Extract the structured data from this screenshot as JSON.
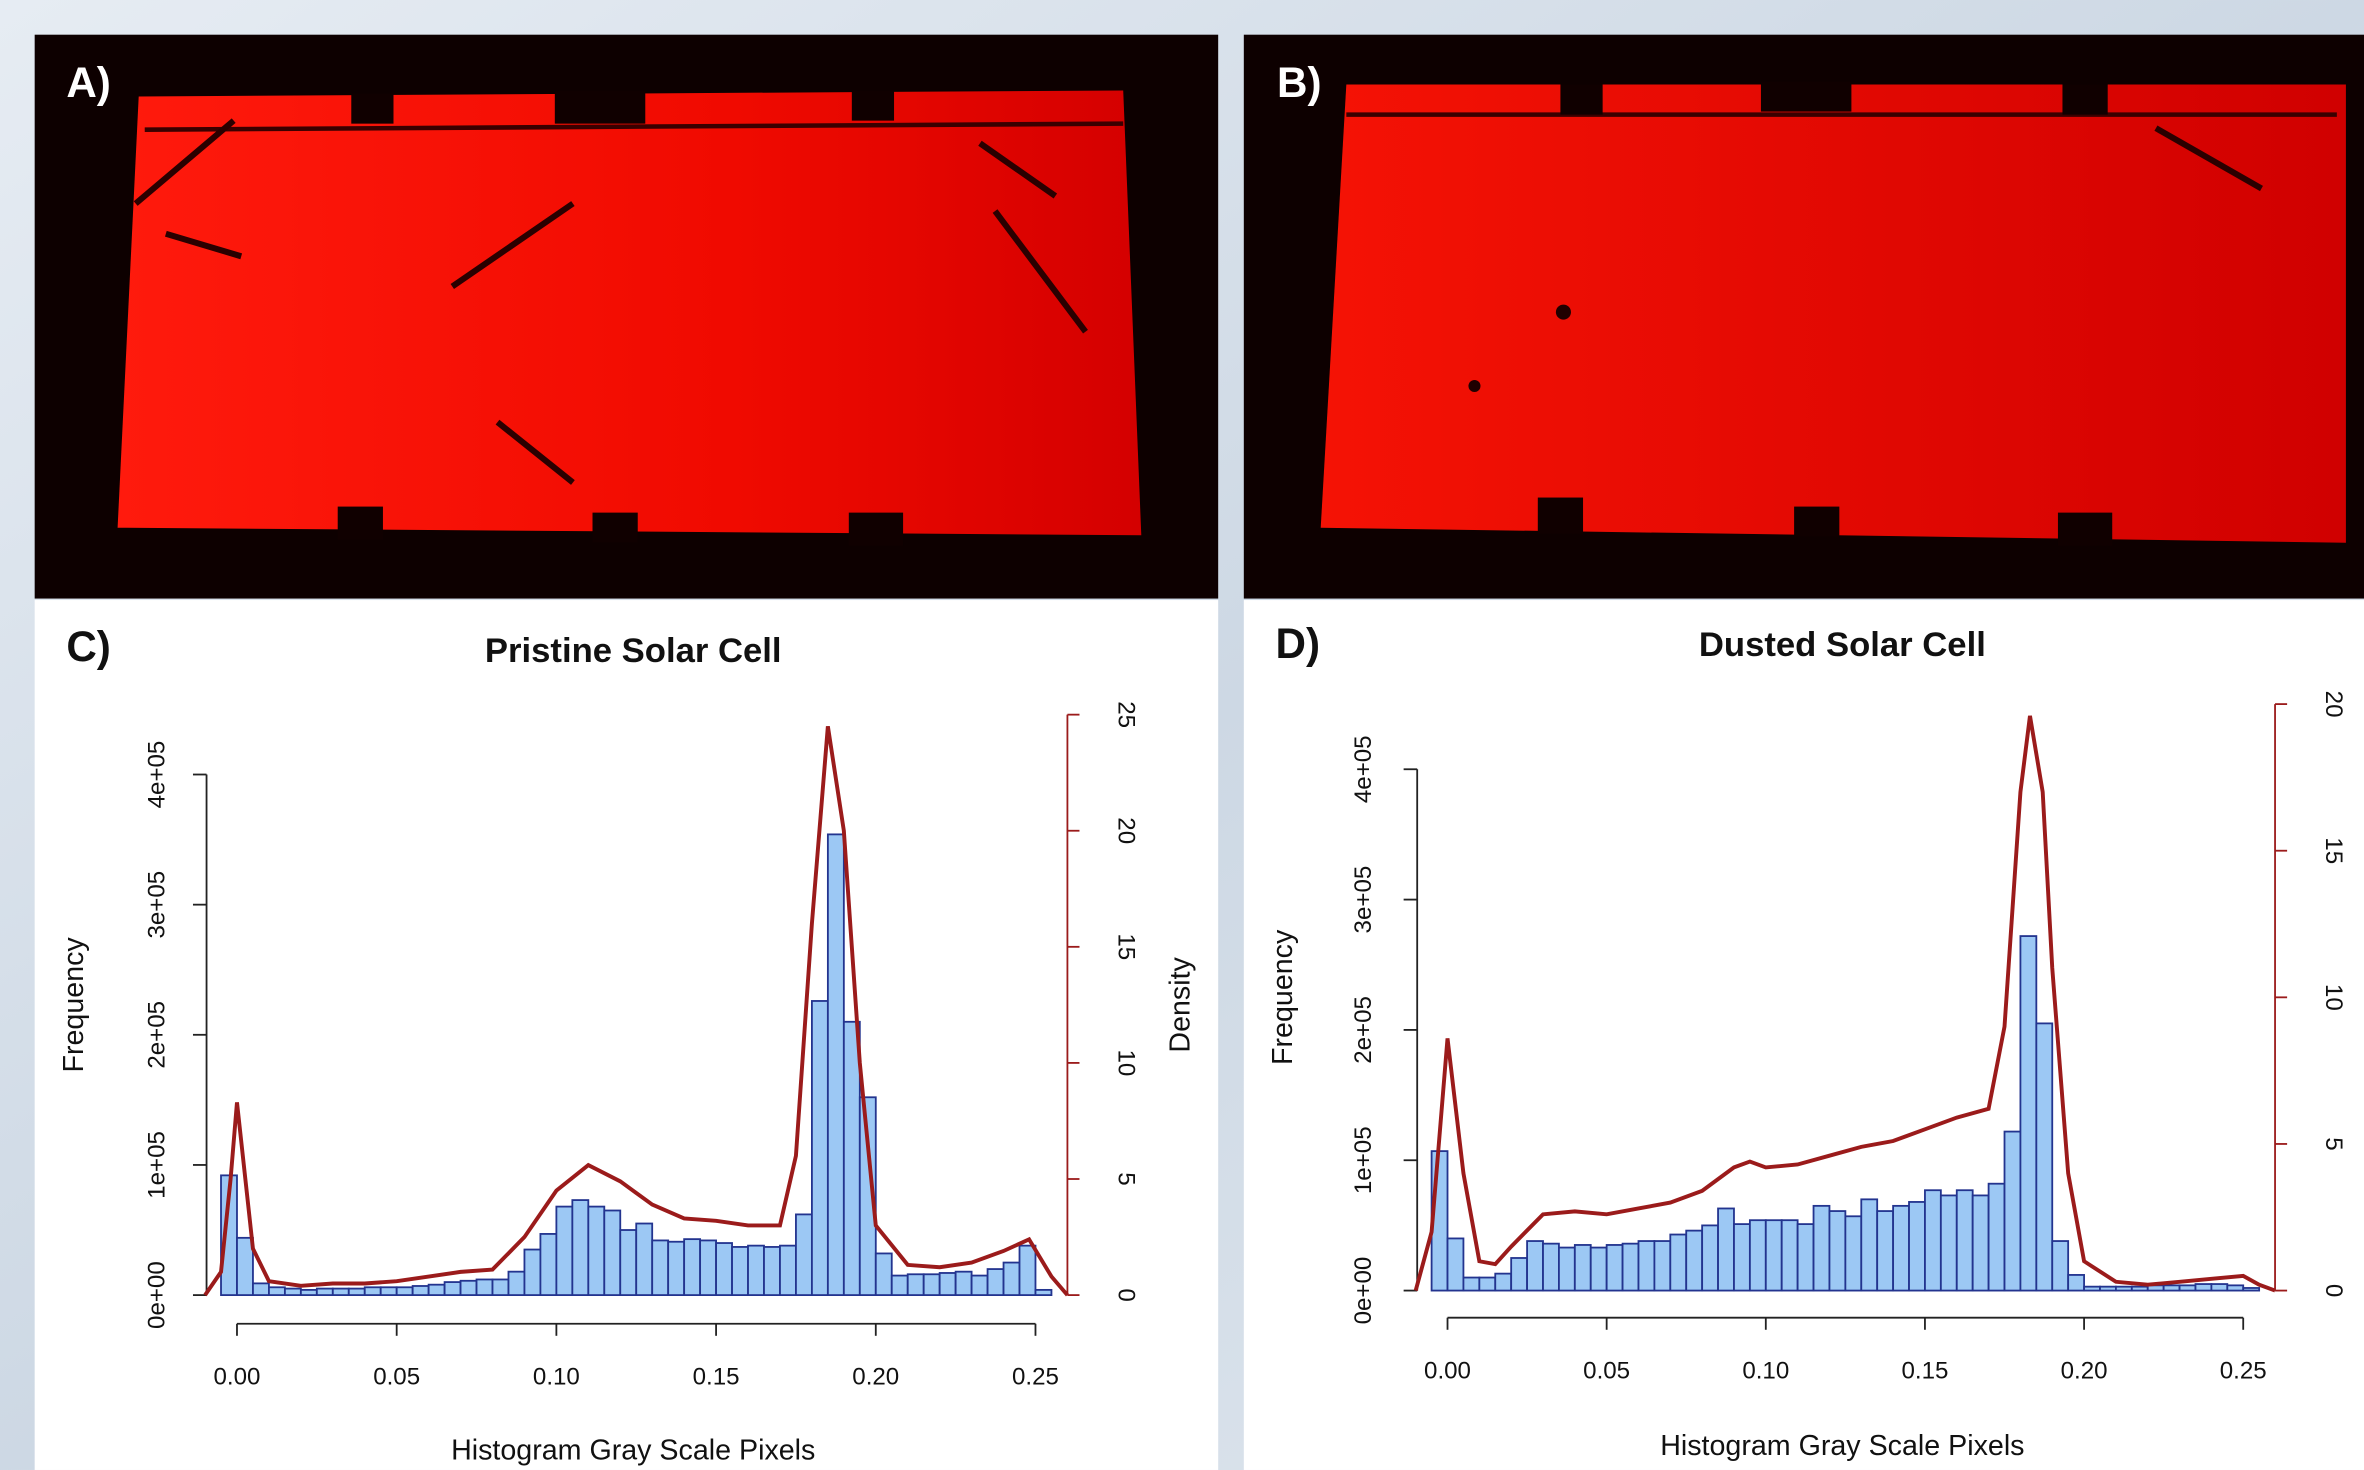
{
  "panel_labels": [
    "A)",
    "B)",
    "C)",
    "D)"
  ],
  "chart_data": [
    {
      "type": "histogram",
      "title": "Pristine Solar Cell",
      "xlabel": "Histogram Gray Scale Pixels",
      "ylabel": "Frequency",
      "y2label": "Density",
      "bins": [
        -0.005,
        0,
        0.005,
        0.01,
        0.015,
        0.02,
        0.025,
        0.03,
        0.035,
        0.04,
        0.045,
        0.05,
        0.055,
        0.06,
        0.065,
        0.07,
        0.075,
        0.08,
        0.085,
        0.09,
        0.095,
        0.1,
        0.105,
        0.11,
        0.115,
        0.12,
        0.125,
        0.13,
        0.135,
        0.14,
        0.145,
        0.15,
        0.155,
        0.16,
        0.165,
        0.17,
        0.175,
        0.18,
        0.185,
        0.19,
        0.195,
        0.2,
        0.205,
        0.21,
        0.215,
        0.22,
        0.225,
        0.23,
        0.235,
        0.24,
        0.245,
        0.25,
        0.255
      ],
      "counts": [
        92000,
        44000,
        9000,
        6000,
        5000,
        4000,
        5000,
        5000,
        5000,
        6000,
        6000,
        6000,
        7000,
        8000,
        10000,
        11000,
        12000,
        12000,
        18000,
        35000,
        47000,
        68000,
        73000,
        68000,
        65000,
        50000,
        55000,
        42000,
        41000,
        43000,
        42000,
        40000,
        37000,
        38000,
        37000,
        38000,
        62000,
        226000,
        354000,
        210000,
        152000,
        32000,
        15000,
        16000,
        16000,
        17000,
        18000,
        15000,
        20000,
        25000,
        38000,
        4000
      ],
      "color": "#9cc8f4",
      "edgecolor": "#23348f",
      "density": {
        "x": [
          -0.01,
          -0.005,
          -0.002,
          0,
          0.005,
          0.01,
          0.02,
          0.03,
          0.04,
          0.05,
          0.06,
          0.07,
          0.08,
          0.09,
          0.1,
          0.11,
          0.12,
          0.13,
          0.14,
          0.15,
          0.16,
          0.17,
          0.175,
          0.18,
          0.185,
          0.19,
          0.195,
          0.2,
          0.21,
          0.22,
          0.23,
          0.24,
          0.248,
          0.255,
          0.26
        ],
        "values": [
          0,
          1,
          5,
          8.3,
          2,
          0.6,
          0.4,
          0.5,
          0.5,
          0.6,
          0.8,
          1,
          1.1,
          2.5,
          4.5,
          5.6,
          4.9,
          3.9,
          3.3,
          3.2,
          3,
          3,
          6,
          16,
          24.5,
          20,
          10,
          3,
          1.3,
          1.2,
          1.4,
          1.9,
          2.4,
          0.8,
          0
        ],
        "color": "#9b1b1b",
        "axis": "y2"
      },
      "xlim": [
        -0.01,
        0.26
      ],
      "ylim": [
        0,
        446000
      ],
      "y2lim": [
        0,
        25
      ],
      "xticks": [
        {
          "value": 0,
          "label": "0.00"
        },
        0.05,
        {
          "value": 0.1,
          "label": "0.10"
        },
        0.15,
        {
          "value": 0.2,
          "label": "0.20"
        },
        0.25
      ],
      "yticks": [
        {
          "value": 0,
          "label": "0e+00"
        },
        {
          "value": 100000,
          "label": "1e+05"
        },
        {
          "value": 200000,
          "label": "2e+05"
        },
        {
          "value": 300000,
          "label": "3e+05"
        },
        {
          "value": 400000,
          "label": "4e+05"
        }
      ],
      "y2ticks": [
        0,
        5,
        10,
        15,
        20,
        25
      ]
    },
    {
      "type": "histogram",
      "title": "Dusted Solar Cell",
      "xlabel": "Histogram Gray Scale Pixels",
      "ylabel": "Frequency",
      "bins": [
        -0.005,
        0,
        0.005,
        0.01,
        0.015,
        0.02,
        0.025,
        0.03,
        0.035,
        0.04,
        0.045,
        0.05,
        0.055,
        0.06,
        0.065,
        0.07,
        0.075,
        0.08,
        0.085,
        0.09,
        0.095,
        0.1,
        0.105,
        0.11,
        0.115,
        0.12,
        0.125,
        0.13,
        0.135,
        0.14,
        0.145,
        0.15,
        0.155,
        0.16,
        0.165,
        0.17,
        0.175,
        0.18,
        0.185,
        0.19,
        0.195,
        0.2,
        0.205,
        0.21,
        0.215,
        0.22,
        0.225,
        0.23,
        0.235,
        0.24,
        0.245,
        0.25,
        0.255
      ],
      "counts": [
        107000,
        40000,
        10000,
        10000,
        13000,
        25000,
        38000,
        36000,
        33000,
        35000,
        33000,
        35000,
        36000,
        38000,
        38000,
        43000,
        46000,
        50000,
        63000,
        51000,
        54000,
        54000,
        54000,
        51000,
        65000,
        61000,
        57000,
        70000,
        61000,
        65000,
        68000,
        77000,
        73000,
        77000,
        73000,
        82000,
        122000,
        272000,
        205000,
        38000,
        12000,
        3000,
        3000,
        3000,
        3000,
        4000,
        4000,
        4000,
        5000,
        5000,
        4000,
        2000
      ],
      "color": "#9cc8f4",
      "edgecolor": "#23348f",
      "density": {
        "x": [
          -0.01,
          -0.005,
          0,
          0.005,
          0.01,
          0.015,
          0.02,
          0.03,
          0.04,
          0.05,
          0.06,
          0.07,
          0.08,
          0.09,
          0.095,
          0.1,
          0.11,
          0.12,
          0.13,
          0.14,
          0.15,
          0.16,
          0.17,
          0.175,
          0.18,
          0.183,
          0.187,
          0.19,
          0.195,
          0.2,
          0.21,
          0.22,
          0.23,
          0.24,
          0.25,
          0.255,
          0.26
        ],
        "values": [
          0,
          2,
          8.6,
          4,
          1,
          0.9,
          1.5,
          2.6,
          2.7,
          2.6,
          2.8,
          3,
          3.4,
          4.2,
          4.4,
          4.2,
          4.3,
          4.6,
          4.9,
          5.1,
          5.5,
          5.9,
          6.2,
          9,
          17,
          19.6,
          17,
          11,
          4,
          1,
          0.3,
          0.2,
          0.3,
          0.4,
          0.5,
          0.2,
          0
        ],
        "color": "#9b1b1b",
        "axis": "y2"
      },
      "xlim": [
        -0.01,
        0.26
      ],
      "ylim": [
        0,
        450000
      ],
      "y2lim": [
        0,
        20
      ],
      "xticks": [
        {
          "value": 0,
          "label": "0.00"
        },
        0.05,
        {
          "value": 0.1,
          "label": "0.10"
        },
        0.15,
        {
          "value": 0.2,
          "label": "0.20"
        },
        0.25
      ],
      "yticks": [
        {
          "value": 0,
          "label": "0e+00"
        },
        {
          "value": 100000,
          "label": "1e+05"
        },
        {
          "value": 200000,
          "label": "2e+05"
        },
        {
          "value": 300000,
          "label": "3e+05"
        },
        {
          "value": 400000,
          "label": "4e+05"
        }
      ],
      "y2ticks": [
        0,
        5,
        10,
        15,
        20
      ]
    }
  ]
}
